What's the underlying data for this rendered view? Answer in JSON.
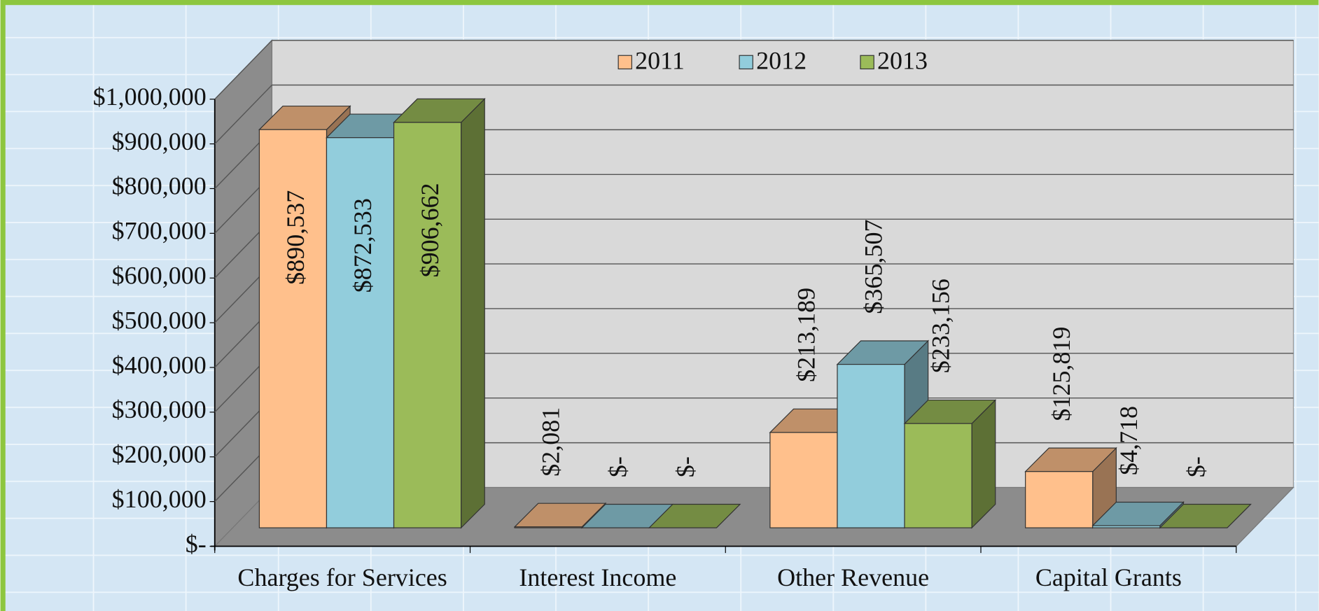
{
  "chart_data": {
    "type": "bar3d",
    "categories": [
      "Charges for Services",
      "Interest Income",
      "Other Revenue",
      "Capital Grants"
    ],
    "series": [
      {
        "name": "2011",
        "color": "#FFC08C",
        "values": [
          890537,
          2081,
          213189,
          125819
        ],
        "value_labels": [
          "$890,537",
          "$2,081",
          "$213,189",
          "$125,819"
        ]
      },
      {
        "name": "2012",
        "color": "#92CDDC",
        "values": [
          872533,
          0,
          365507,
          4718
        ],
        "value_labels": [
          "$872,533",
          "$-",
          "$365,507",
          "$4,718"
        ]
      },
      {
        "name": "2013",
        "color": "#9BBB59",
        "values": [
          906662,
          0,
          233156,
          0
        ],
        "value_labels": [
          "$906,662",
          "$-",
          "$233,156",
          "$-"
        ]
      }
    ],
    "ylim": [
      0,
      1000000
    ],
    "yticks": [
      {
        "value": 0,
        "label": "$-"
      },
      {
        "value": 100000,
        "label": "$100,000"
      },
      {
        "value": 200000,
        "label": "$200,000"
      },
      {
        "value": 300000,
        "label": "$300,000"
      },
      {
        "value": 400000,
        "label": "$400,000"
      },
      {
        "value": 500000,
        "label": "$500,000"
      },
      {
        "value": 600000,
        "label": "$600,000"
      },
      {
        "value": 700000,
        "label": "$700,000"
      },
      {
        "value": 800000,
        "label": "$800,000"
      },
      {
        "value": 900000,
        "label": "$900,000"
      },
      {
        "value": 1000000,
        "label": "$1,000,000"
      }
    ],
    "grid": true,
    "legend": "top"
  }
}
